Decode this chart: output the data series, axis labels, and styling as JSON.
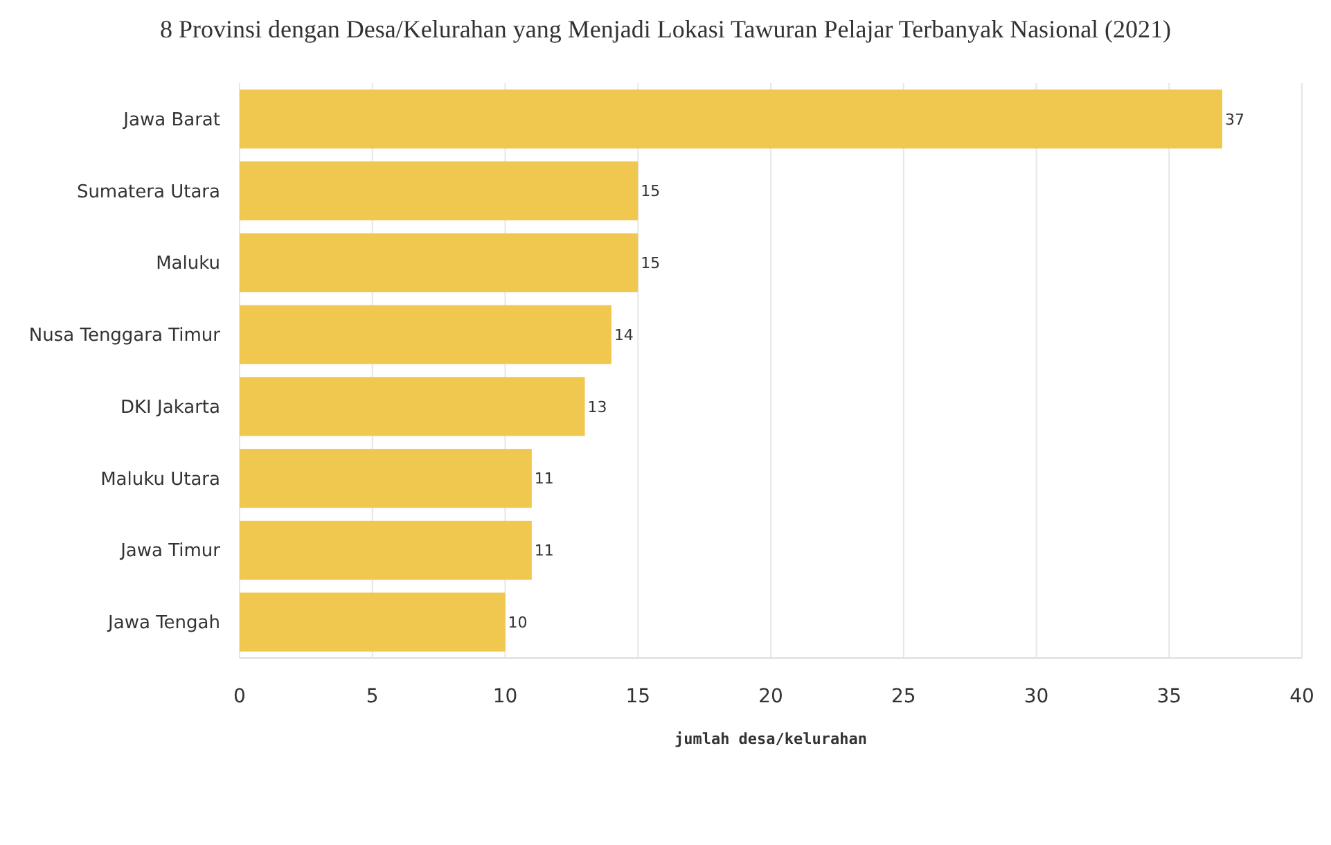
{
  "chart_data": {
    "type": "bar",
    "orientation": "horizontal",
    "title": "8 Provinsi dengan Desa/Kelurahan yang Menjadi Lokasi Tawuran Pelajar Terbanyak Nasional (2021)",
    "xlabel": "jumlah desa/kelurahan",
    "categories": [
      "Jawa Barat",
      "Sumatera Utara",
      "Maluku",
      "Nusa Tenggara Timur",
      "DKI Jakarta",
      "Maluku Utara",
      "Jawa Timur",
      "Jawa Tengah"
    ],
    "values": [
      37,
      15,
      15,
      14,
      13,
      11,
      11,
      10
    ],
    "color": "#f0c850",
    "xlim": [
      0,
      40
    ],
    "xticks": [
      0,
      5,
      10,
      15,
      20,
      25,
      30,
      35,
      40
    ],
    "grid": "x",
    "data_labels": true
  }
}
